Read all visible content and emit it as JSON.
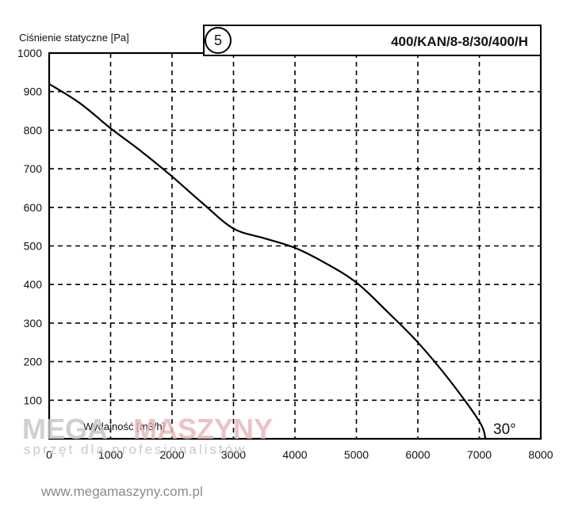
{
  "chart_data": {
    "type": "line",
    "title": "",
    "ylabel": "Ciśnienie statyczne [Pa]",
    "xlabel": "Wydajność [m3/h]",
    "model_label": "400/KAN/8-8/30/400/H",
    "curve_number": "5",
    "angle_label": "30°",
    "xlim": [
      0,
      8000
    ],
    "ylim": [
      0,
      1000
    ],
    "x_ticks": [
      "0",
      "1000",
      "2000",
      "3000",
      "4000",
      "5000",
      "6000",
      "7000",
      "8000"
    ],
    "y_ticks": [
      "1000",
      "900",
      "800",
      "700",
      "600",
      "500",
      "400",
      "300",
      "200",
      "100"
    ],
    "grid": true,
    "series": [
      {
        "name": "",
        "x": [
          0,
          500,
          1000,
          1500,
          2000,
          2500,
          3000,
          3500,
          4000,
          4500,
          5000,
          5500,
          6000,
          6500,
          7000,
          7100
        ],
        "y": [
          920,
          870,
          805,
          745,
          680,
          610,
          545,
          520,
          495,
          455,
          405,
          330,
          250,
          155,
          45,
          0
        ]
      }
    ]
  },
  "watermark": {
    "brand_left": "MEGA",
    "brand_right": "MASZYNY",
    "tagline": "sprzęt dla profesjonalistów",
    "url": "www.megamaszyny.com.pl"
  }
}
